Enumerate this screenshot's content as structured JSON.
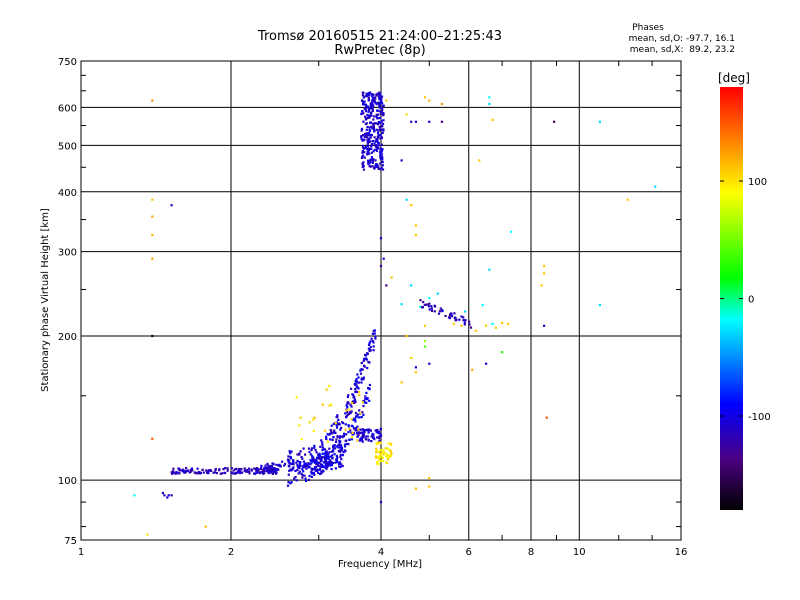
{
  "chart_data": {
    "type": "scatter",
    "title": "Tromsø 20160515 21:24:00–21:25:43",
    "subtitle": "RwPretec (8p)",
    "xlabel": "Frequency [MHz]",
    "ylabel": "Stationary phase Virtual Height [km]",
    "x_scale": "log2",
    "y_scale": "log",
    "xlim": [
      1,
      16
    ],
    "ylim": [
      75,
      750
    ],
    "x_ticks": [
      1,
      2,
      4,
      6,
      8,
      10,
      16
    ],
    "y_ticks": [
      75,
      100,
      200,
      300,
      400,
      500,
      600,
      750
    ],
    "grid": true,
    "stats": {
      "heading": "Phases",
      "line1": "mean, sd,O: -97.7, 16.1",
      "line2": "mean, sd,X:  89.2, 23.2"
    },
    "colorbar": {
      "label": "[deg]",
      "range": [
        -180,
        180
      ],
      "ticks": [
        100,
        0,
        -100
      ],
      "colors": [
        "#000000",
        "#4b0082",
        "#0000ff",
        "#00ffff",
        "#00ff00",
        "#ffff00",
        "#ff0000"
      ]
    },
    "points": [
      [
        1.39,
        620,
        130
      ],
      [
        1.39,
        385,
        110
      ],
      [
        1.39,
        355,
        120
      ],
      [
        1.39,
        325,
        115
      ],
      [
        1.39,
        290,
        125
      ],
      [
        1.39,
        200,
        -170
      ],
      [
        1.39,
        122,
        150
      ],
      [
        1.52,
        375,
        -120
      ],
      [
        1.36,
        77,
        100
      ],
      [
        1.78,
        80,
        115
      ],
      [
        1.28,
        93,
        -20
      ],
      [
        1.47,
        93,
        -110
      ],
      [
        1.49,
        92,
        -105
      ],
      [
        1.5,
        93,
        -100
      ],
      [
        1.52,
        93,
        -115
      ],
      [
        1.46,
        94,
        -120
      ],
      [
        4.1,
        620,
        110
      ],
      [
        4.5,
        580,
        105
      ],
      [
        4.9,
        630,
        110
      ],
      [
        5.0,
        620,
        115
      ],
      [
        5.3,
        610,
        130
      ],
      [
        4.6,
        560,
        -120
      ],
      [
        4.7,
        560,
        -110
      ],
      [
        5.0,
        560,
        -100
      ],
      [
        5.3,
        560,
        -130
      ],
      [
        6.6,
        630,
        -20
      ],
      [
        6.6,
        610,
        -30
      ],
      [
        6.7,
        565,
        110
      ],
      [
        6.3,
        465,
        110
      ],
      [
        4.4,
        465,
        -110
      ],
      [
        8.9,
        560,
        -150
      ],
      [
        11.0,
        560,
        -30
      ],
      [
        12.5,
        385,
        110
      ],
      [
        14.2,
        410,
        -30
      ],
      [
        4.5,
        385,
        -30
      ],
      [
        4.6,
        375,
        110
      ],
      [
        4.7,
        340,
        110
      ],
      [
        4.7,
        325,
        110
      ],
      [
        4.0,
        320,
        -110
      ],
      [
        4.0,
        280,
        -130
      ],
      [
        4.05,
        290,
        -110
      ],
      [
        4.1,
        255,
        -140
      ],
      [
        4.2,
        265,
        110
      ],
      [
        7.3,
        330,
        -20
      ],
      [
        6.6,
        275,
        -30
      ],
      [
        8.5,
        280,
        110
      ],
      [
        8.5,
        270,
        110
      ],
      [
        8.4,
        255,
        110
      ],
      [
        8.5,
        210,
        -110
      ],
      [
        11.0,
        232,
        -30
      ],
      [
        8.6,
        135,
        150
      ],
      [
        7.0,
        185,
        30
      ],
      [
        6.5,
        175,
        -110
      ],
      [
        6.1,
        170,
        120
      ],
      [
        4.9,
        195,
        60
      ],
      [
        4.9,
        190,
        40
      ],
      [
        4.5,
        200,
        110
      ],
      [
        4.6,
        180,
        110
      ],
      [
        4.7,
        172,
        -110
      ],
      [
        4.7,
        168,
        110
      ],
      [
        5.0,
        175,
        -110
      ],
      [
        4.4,
        160,
        110
      ],
      [
        4.0,
        90,
        -110
      ],
      [
        4.7,
        96,
        110
      ],
      [
        5.0,
        97,
        110
      ],
      [
        5.0,
        101,
        110
      ],
      [
        4.9,
        210,
        110
      ],
      [
        5.6,
        212,
        110
      ],
      [
        5.8,
        210,
        110
      ],
      [
        6.2,
        205,
        110
      ],
      [
        6.5,
        210,
        110
      ],
      [
        6.8,
        208,
        110
      ],
      [
        7.0,
        213,
        110
      ],
      [
        7.2,
        212,
        110
      ],
      [
        4.8,
        230,
        -10
      ],
      [
        5.0,
        240,
        -20
      ],
      [
        4.4,
        233,
        -30
      ],
      [
        4.6,
        255,
        -30
      ],
      [
        5.2,
        245,
        -30
      ],
      [
        6.4,
        232,
        -20
      ],
      [
        5.9,
        225,
        -30
      ],
      [
        6.7,
        212,
        -20
      ]
    ]
  }
}
